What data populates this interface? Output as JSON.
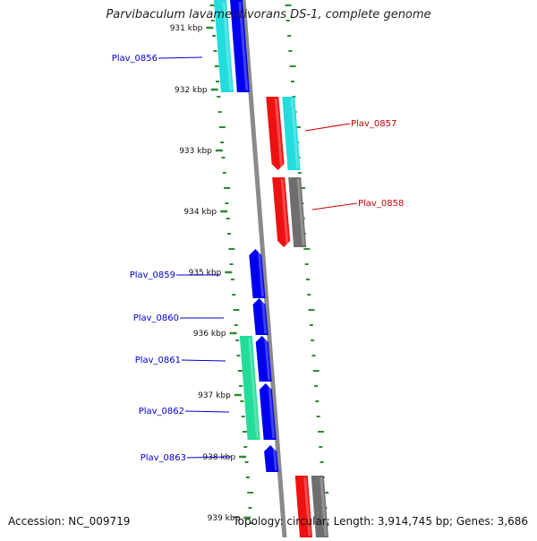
{
  "title": "Parvibaculum lavamentivorans DS-1, complete genome",
  "footer": {
    "accession": "Accession: NC_009719",
    "summary": "Topology: circular; Length: 3,914,745 bp; Genes: 3,686"
  },
  "colors": {
    "backbone": "#8a8a8a",
    "ticks": "#2e8b2e",
    "forward_label": "#0000cc",
    "reverse_label": "#cc0000",
    "gene_blue": "#0000ee",
    "gene_cyan": "#22dddd",
    "gene_red": "#ee1111",
    "gene_gray": "#6e6e6e",
    "gene_green": "#22dd99"
  },
  "scale_labels": [
    "931 kbp",
    "932 kbp",
    "933 kbp",
    "934 kbp",
    "935 kbp",
    "936 kbp",
    "937 kbp",
    "938 kbp",
    "939 kbp"
  ],
  "genes": [
    {
      "name": "Plav_0856",
      "strand": "forward"
    },
    {
      "name": "Plav_0857",
      "strand": "reverse"
    },
    {
      "name": "Plav_0858",
      "strand": "reverse"
    },
    {
      "name": "Plav_0859",
      "strand": "forward"
    },
    {
      "name": "Plav_0860",
      "strand": "forward"
    },
    {
      "name": "Plav_0861",
      "strand": "forward"
    },
    {
      "name": "Plav_0862",
      "strand": "forward"
    },
    {
      "name": "Plav_0863",
      "strand": "forward"
    }
  ]
}
